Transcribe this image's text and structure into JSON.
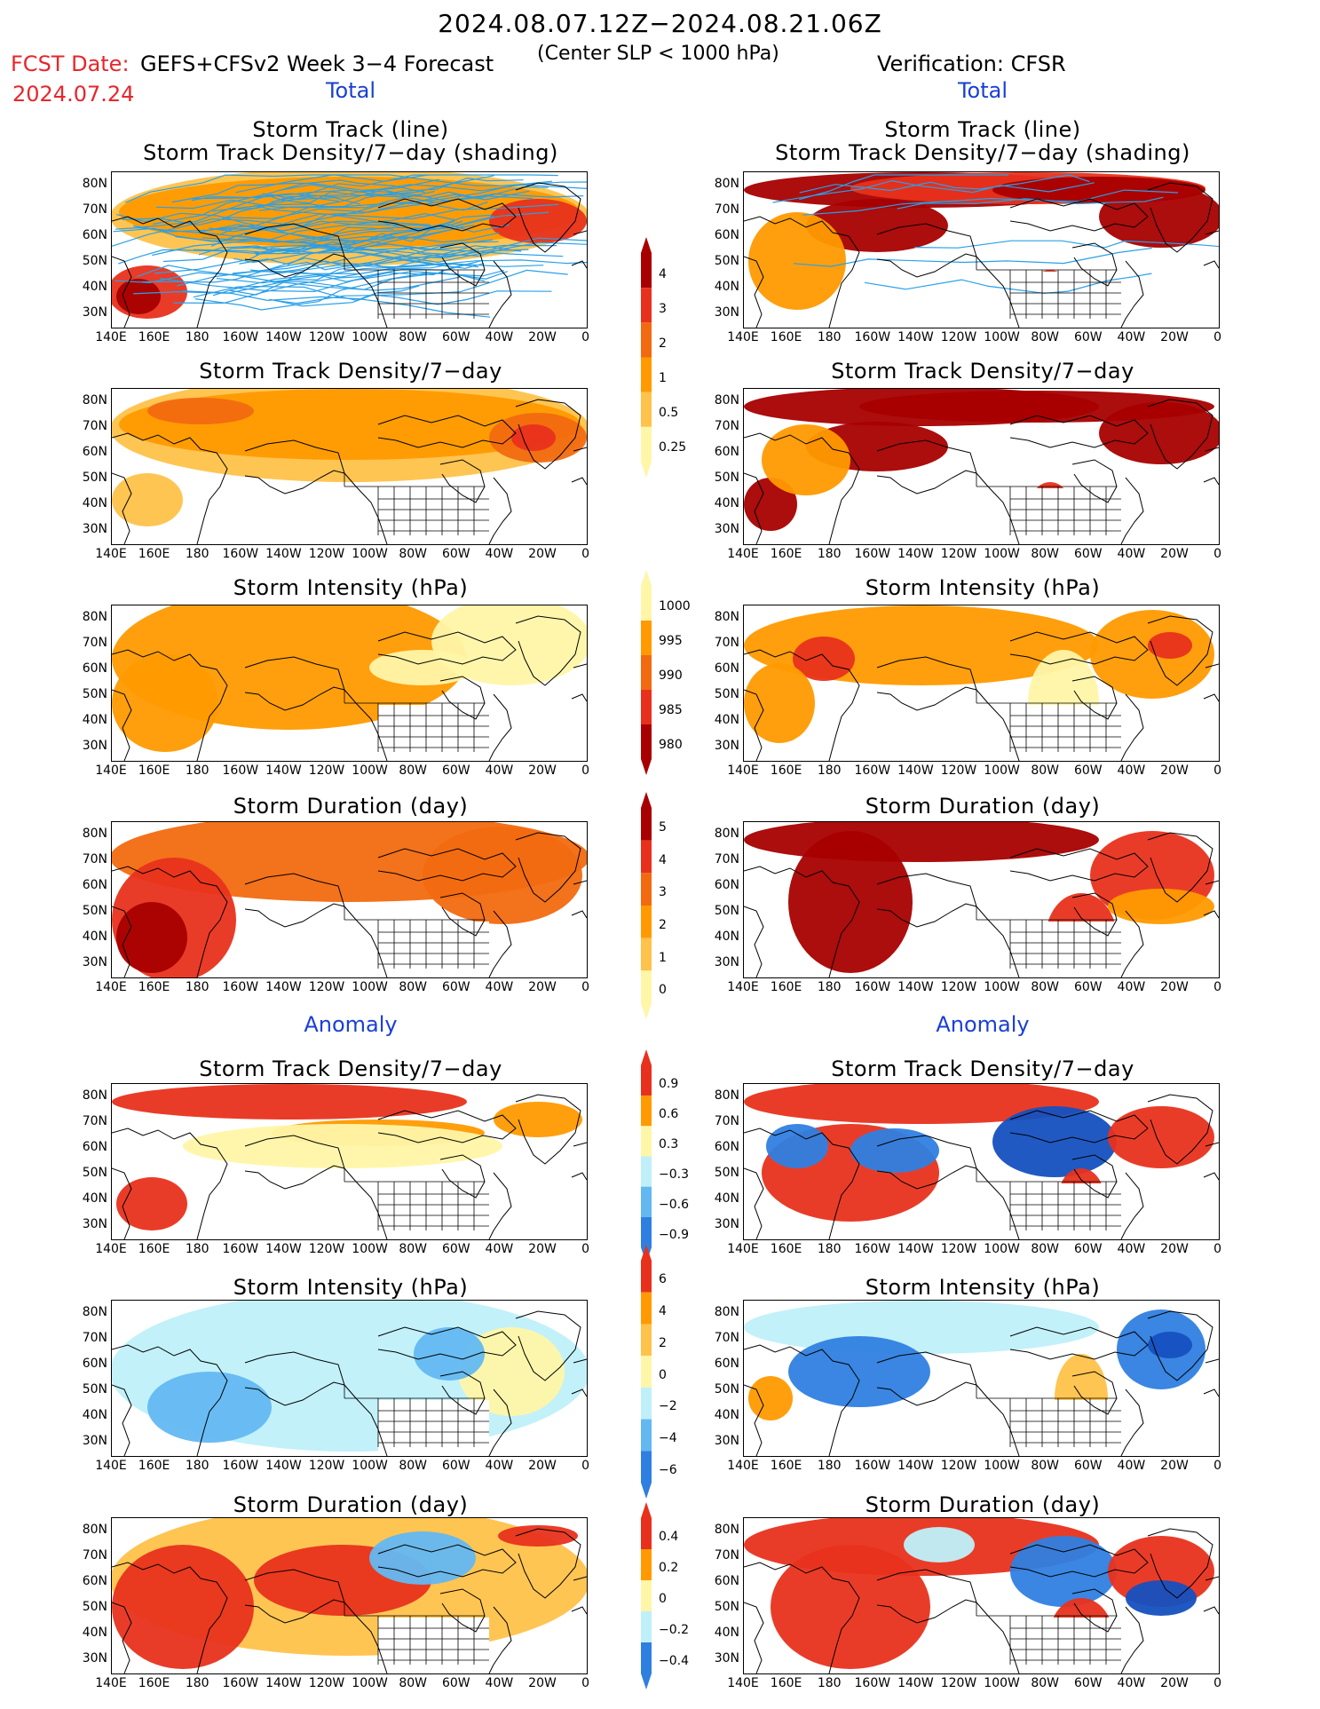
{
  "header": {
    "title": "2024.08.07.12Z−2024.08.21.06Z",
    "subtitle": "(Center SLP < 1000 hPa)",
    "fcst_label": "FCST Date:",
    "fcst_date": "2024.07.24",
    "model_label": "GEFS+CFSv2 Week 3−4 Forecast",
    "verification_label": "Verification: CFSR"
  },
  "sections": {
    "total": "Total",
    "anomaly": "Anomaly"
  },
  "axes": {
    "lat_ticks": [
      "80N",
      "70N",
      "60N",
      "50N",
      "40N",
      "30N"
    ],
    "lon_ticks": [
      "140E",
      "160E",
      "180",
      "160W",
      "140W",
      "120W",
      "100W",
      "80W",
      "60W",
      "40W",
      "20W",
      "0"
    ]
  },
  "panel_titles": {
    "track_line": "Storm Track (line)",
    "track_density_shading": "Storm Track Density/7−day (shading)",
    "track_density": "Storm Track Density/7−day",
    "intensity": "Storm Intensity (hPa)",
    "duration": "Storm Duration (day)"
  },
  "colorbars": {
    "density_total": [
      "4",
      "3",
      "2",
      "1",
      "0.5",
      "0.25"
    ],
    "intensity_total": [
      "1000",
      "995",
      "990",
      "985",
      "980"
    ],
    "duration_total": [
      "5",
      "4",
      "3",
      "2",
      "1",
      "0"
    ],
    "density_anomaly": [
      "0.9",
      "0.6",
      "0.3",
      "−0.3",
      "−0.6",
      "−0.9"
    ],
    "intensity_anomaly": [
      "6",
      "4",
      "2",
      "0",
      "−2",
      "−4",
      "−6"
    ],
    "duration_anomaly": [
      "0.4",
      "0.2",
      "0",
      "−0.2",
      "−0.4"
    ]
  },
  "colors": {
    "fcst_red": "#e8262b",
    "section_blue": "#1a3fd6",
    "pale_yellow": "#fff6a8",
    "light_orange": "#ffc24a",
    "orange": "#ff9a00",
    "dark_orange": "#f26a10",
    "red": "#e8311c",
    "dark_red": "#a80000",
    "track_blue": "#2aa0e8",
    "light_blue": "#bff0fa",
    "mid_blue": "#63b8f2",
    "blue": "#2f7fe0",
    "dark_blue": "#1550c0"
  }
}
